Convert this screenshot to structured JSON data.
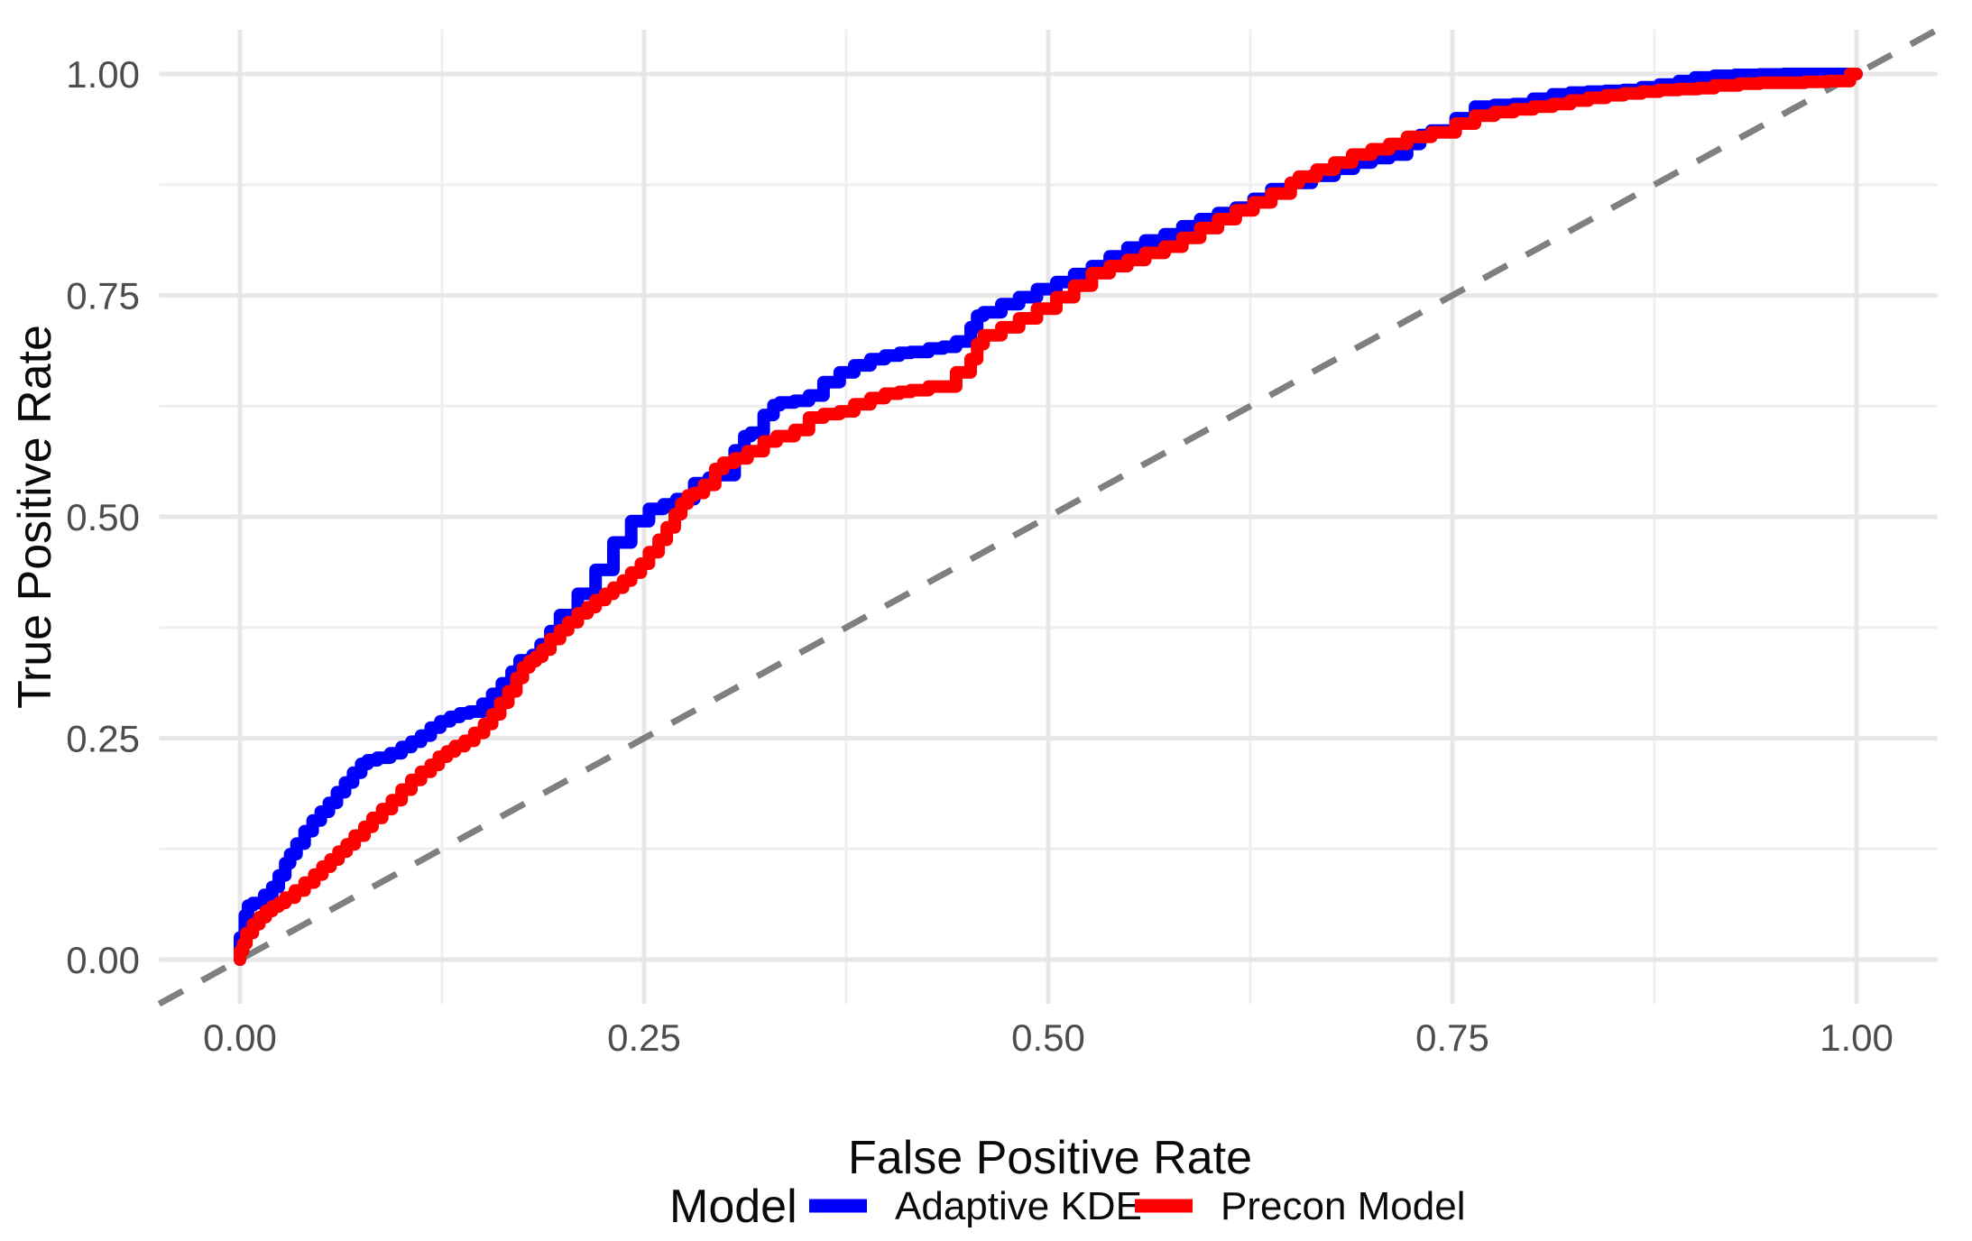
{
  "chart_data": {
    "type": "line",
    "subtype": "roc-curve-staircase",
    "title": "",
    "xlabel": "False Positive Rate",
    "ylabel": "True Positive Rate",
    "xlim": [
      -0.05,
      1.05
    ],
    "ylim": [
      -0.05,
      1.05
    ],
    "grid": true,
    "x_ticks": {
      "values": [
        0,
        0.25,
        0.5,
        0.75,
        1.0
      ],
      "labels": [
        "0.00",
        "0.25",
        "0.50",
        "0.75",
        "1.00"
      ]
    },
    "y_ticks": {
      "values": [
        0,
        0.25,
        0.5,
        0.75,
        1.0
      ],
      "labels": [
        "0.00",
        "0.25",
        "0.50",
        "0.75",
        "1.00"
      ]
    },
    "x_minor_ticks": [
      0.125,
      0.375,
      0.625,
      0.875
    ],
    "y_minor_ticks": [
      0.125,
      0.375,
      0.625,
      0.875
    ],
    "colors": {
      "background": "#ffffff",
      "grid_major": "#e7e7e7",
      "grid_minor": "#efefef",
      "tick_text": "#4d4d4d",
      "axis_title_text": "#0a0a0a",
      "reference_line": "#7f7f7f"
    },
    "reference_line": {
      "type": "diagonal",
      "style": "dashed",
      "color": "#7f7f7f",
      "from": [
        -0.05,
        -0.05
      ],
      "to": [
        1.05,
        1.05
      ]
    },
    "legend": {
      "title": "Model",
      "position": "bottom",
      "entries": [
        {
          "label": "Adaptive KDE",
          "color": "#0000ff"
        },
        {
          "label": "Precon Model",
          "color": "#ff0000"
        }
      ]
    },
    "series": [
      {
        "name": "Adaptive KDE",
        "color": "#0000ff",
        "points": [
          [
            0,
            0
          ],
          [
            0.003,
            0.025
          ],
          [
            0.005,
            0.05
          ],
          [
            0.008,
            0.061
          ],
          [
            0.015,
            0.064
          ],
          [
            0.02,
            0.073
          ],
          [
            0.024,
            0.082
          ],
          [
            0.028,
            0.095
          ],
          [
            0.031,
            0.109
          ],
          [
            0.035,
            0.119
          ],
          [
            0.04,
            0.131
          ],
          [
            0.045,
            0.145
          ],
          [
            0.05,
            0.157
          ],
          [
            0.055,
            0.167
          ],
          [
            0.06,
            0.177
          ],
          [
            0.065,
            0.189
          ],
          [
            0.07,
            0.2
          ],
          [
            0.075,
            0.211
          ],
          [
            0.079,
            0.221
          ],
          [
            0.085,
            0.225
          ],
          [
            0.093,
            0.228
          ],
          [
            0.1,
            0.233
          ],
          [
            0.106,
            0.24
          ],
          [
            0.112,
            0.246
          ],
          [
            0.118,
            0.253
          ],
          [
            0.124,
            0.262
          ],
          [
            0.13,
            0.269
          ],
          [
            0.136,
            0.274
          ],
          [
            0.142,
            0.278
          ],
          [
            0.15,
            0.28
          ],
          [
            0.156,
            0.289
          ],
          [
            0.162,
            0.3
          ],
          [
            0.168,
            0.312
          ],
          [
            0.173,
            0.325
          ],
          [
            0.181,
            0.338
          ],
          [
            0.186,
            0.344
          ],
          [
            0.192,
            0.356
          ],
          [
            0.198,
            0.371
          ],
          [
            0.209,
            0.389
          ],
          [
            0.22,
            0.413
          ],
          [
            0.231,
            0.44
          ],
          [
            0.242,
            0.471
          ],
          [
            0.253,
            0.495
          ],
          [
            0.262,
            0.509
          ],
          [
            0.27,
            0.514
          ],
          [
            0.281,
            0.52
          ],
          [
            0.29,
            0.538
          ],
          [
            0.294,
            0.544
          ],
          [
            0.306,
            0.547
          ],
          [
            0.312,
            0.575
          ],
          [
            0.316,
            0.591
          ],
          [
            0.324,
            0.595
          ],
          [
            0.33,
            0.615
          ],
          [
            0.334,
            0.626
          ],
          [
            0.343,
            0.629
          ],
          [
            0.352,
            0.631
          ],
          [
            0.361,
            0.637
          ],
          [
            0.371,
            0.652
          ],
          [
            0.38,
            0.663
          ],
          [
            0.39,
            0.671
          ],
          [
            0.399,
            0.678
          ],
          [
            0.408,
            0.682
          ],
          [
            0.415,
            0.685
          ],
          [
            0.426,
            0.686
          ],
          [
            0.435,
            0.69
          ],
          [
            0.443,
            0.692
          ],
          [
            0.452,
            0.698
          ],
          [
            0.456,
            0.714
          ],
          [
            0.46,
            0.727
          ],
          [
            0.471,
            0.731
          ],
          [
            0.482,
            0.74
          ],
          [
            0.493,
            0.748
          ],
          [
            0.505,
            0.757
          ],
          [
            0.516,
            0.765
          ],
          [
            0.527,
            0.774
          ],
          [
            0.538,
            0.783
          ],
          [
            0.549,
            0.794
          ],
          [
            0.56,
            0.804
          ],
          [
            0.572,
            0.812
          ],
          [
            0.583,
            0.819
          ],
          [
            0.594,
            0.828
          ],
          [
            0.605,
            0.836
          ],
          [
            0.616,
            0.843
          ],
          [
            0.627,
            0.849
          ],
          [
            0.638,
            0.859
          ],
          [
            0.65,
            0.87
          ],
          [
            0.663,
            0.877
          ],
          [
            0.677,
            0.885
          ],
          [
            0.689,
            0.893
          ],
          [
            0.7,
            0.9
          ],
          [
            0.711,
            0.905
          ],
          [
            0.722,
            0.909
          ],
          [
            0.73,
            0.921
          ],
          [
            0.737,
            0.931
          ],
          [
            0.752,
            0.936
          ],
          [
            0.764,
            0.95
          ],
          [
            0.776,
            0.963
          ],
          [
            0.788,
            0.965
          ],
          [
            0.8,
            0.966
          ],
          [
            0.812,
            0.972
          ],
          [
            0.823,
            0.977
          ],
          [
            0.834,
            0.979
          ],
          [
            0.845,
            0.98
          ],
          [
            0.856,
            0.981
          ],
          [
            0.867,
            0.982
          ],
          [
            0.878,
            0.985
          ],
          [
            0.89,
            0.988
          ],
          [
            0.9,
            0.992
          ],
          [
            0.912,
            0.996
          ],
          [
            0.925,
            0.998
          ],
          [
            0.94,
            0.999
          ],
          [
            0.97,
            1
          ],
          [
            1,
            1
          ]
        ]
      },
      {
        "name": "Precon Model",
        "color": "#ff0000",
        "points": [
          [
            0,
            0
          ],
          [
            0.002,
            0.01
          ],
          [
            0.004,
            0.018
          ],
          [
            0.008,
            0.03
          ],
          [
            0.012,
            0.04
          ],
          [
            0.016,
            0.048
          ],
          [
            0.02,
            0.055
          ],
          [
            0.024,
            0.06
          ],
          [
            0.028,
            0.064
          ],
          [
            0.034,
            0.07
          ],
          [
            0.04,
            0.078
          ],
          [
            0.046,
            0.087
          ],
          [
            0.051,
            0.096
          ],
          [
            0.056,
            0.105
          ],
          [
            0.061,
            0.113
          ],
          [
            0.066,
            0.122
          ],
          [
            0.071,
            0.13
          ],
          [
            0.077,
            0.14
          ],
          [
            0.082,
            0.15
          ],
          [
            0.088,
            0.16
          ],
          [
            0.094,
            0.17
          ],
          [
            0.1,
            0.18
          ],
          [
            0.106,
            0.192
          ],
          [
            0.112,
            0.203
          ],
          [
            0.118,
            0.212
          ],
          [
            0.123,
            0.22
          ],
          [
            0.128,
            0.229
          ],
          [
            0.133,
            0.235
          ],
          [
            0.139,
            0.241
          ],
          [
            0.145,
            0.247
          ],
          [
            0.151,
            0.256
          ],
          [
            0.156,
            0.266
          ],
          [
            0.161,
            0.277
          ],
          [
            0.166,
            0.29
          ],
          [
            0.171,
            0.303
          ],
          [
            0.175,
            0.318
          ],
          [
            0.179,
            0.33
          ],
          [
            0.183,
            0.337
          ],
          [
            0.187,
            0.342
          ],
          [
            0.192,
            0.35
          ],
          [
            0.198,
            0.362
          ],
          [
            0.203,
            0.372
          ],
          [
            0.209,
            0.381
          ],
          [
            0.215,
            0.391
          ],
          [
            0.22,
            0.398
          ],
          [
            0.226,
            0.406
          ],
          [
            0.231,
            0.413
          ],
          [
            0.237,
            0.42
          ],
          [
            0.242,
            0.428
          ],
          [
            0.248,
            0.437
          ],
          [
            0.253,
            0.447
          ],
          [
            0.259,
            0.46
          ],
          [
            0.264,
            0.474
          ],
          [
            0.269,
            0.488
          ],
          [
            0.273,
            0.503
          ],
          [
            0.277,
            0.515
          ],
          [
            0.281,
            0.524
          ],
          [
            0.287,
            0.527
          ],
          [
            0.294,
            0.536
          ],
          [
            0.299,
            0.554
          ],
          [
            0.306,
            0.561
          ],
          [
            0.314,
            0.566
          ],
          [
            0.324,
            0.574
          ],
          [
            0.332,
            0.585
          ],
          [
            0.343,
            0.591
          ],
          [
            0.352,
            0.598
          ],
          [
            0.361,
            0.612
          ],
          [
            0.371,
            0.616
          ],
          [
            0.38,
            0.619
          ],
          [
            0.39,
            0.627
          ],
          [
            0.399,
            0.634
          ],
          [
            0.408,
            0.639
          ],
          [
            0.415,
            0.641
          ],
          [
            0.426,
            0.643
          ],
          [
            0.443,
            0.647
          ],
          [
            0.452,
            0.663
          ],
          [
            0.456,
            0.678
          ],
          [
            0.46,
            0.695
          ],
          [
            0.471,
            0.705
          ],
          [
            0.482,
            0.714
          ],
          [
            0.493,
            0.724
          ],
          [
            0.505,
            0.735
          ],
          [
            0.516,
            0.748
          ],
          [
            0.527,
            0.761
          ],
          [
            0.538,
            0.775
          ],
          [
            0.549,
            0.783
          ],
          [
            0.56,
            0.79
          ],
          [
            0.572,
            0.798
          ],
          [
            0.583,
            0.805
          ],
          [
            0.594,
            0.815
          ],
          [
            0.605,
            0.826
          ],
          [
            0.616,
            0.836
          ],
          [
            0.627,
            0.846
          ],
          [
            0.638,
            0.855
          ],
          [
            0.65,
            0.865
          ],
          [
            0.655,
            0.877
          ],
          [
            0.666,
            0.884
          ],
          [
            0.677,
            0.892
          ],
          [
            0.688,
            0.9
          ],
          [
            0.7,
            0.909
          ],
          [
            0.711,
            0.915
          ],
          [
            0.722,
            0.921
          ],
          [
            0.737,
            0.929
          ],
          [
            0.752,
            0.934
          ],
          [
            0.764,
            0.944
          ],
          [
            0.776,
            0.953
          ],
          [
            0.788,
            0.957
          ],
          [
            0.8,
            0.96
          ],
          [
            0.812,
            0.963
          ],
          [
            0.823,
            0.966
          ],
          [
            0.834,
            0.97
          ],
          [
            0.845,
            0.973
          ],
          [
            0.856,
            0.976
          ],
          [
            0.867,
            0.978
          ],
          [
            0.878,
            0.98
          ],
          [
            0.89,
            0.982
          ],
          [
            0.902,
            0.983
          ],
          [
            0.912,
            0.984
          ],
          [
            0.927,
            0.987
          ],
          [
            0.94,
            0.989
          ],
          [
            0.955,
            0.99
          ],
          [
            0.968,
            0.99
          ],
          [
            0.982,
            0.991
          ],
          [
            0.996,
            0.992
          ],
          [
            1,
            1
          ]
        ]
      }
    ]
  }
}
